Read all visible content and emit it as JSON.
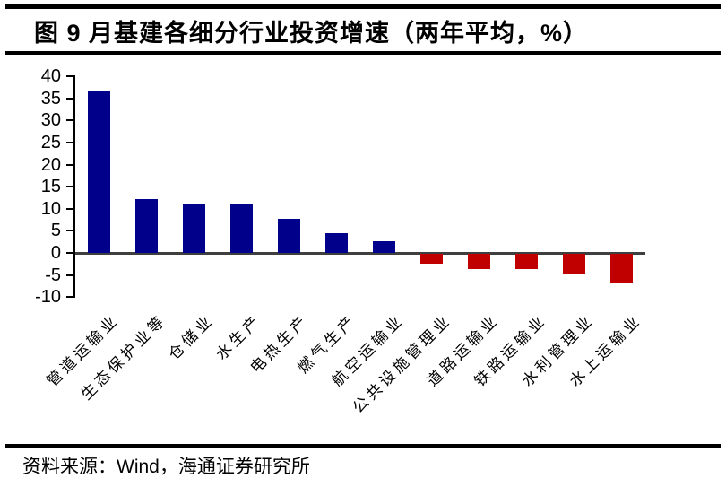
{
  "header": {
    "title": "图 9 月基建各细分行业投资增速（两年平均，%）"
  },
  "footer": {
    "source": "资料来源：Wind，海通证券研究所"
  },
  "chart_data": {
    "type": "bar",
    "title": "9月基建各细分行业投资增速（两年平均，%）",
    "categories": [
      "管道运输业",
      "生态保护业等",
      "仓储业",
      "水生产",
      "电热生产",
      "燃气生产",
      "航空运输业",
      "公共设施管理业",
      "道路运输业",
      "铁路运输业",
      "水利管理业",
      "水上运输业"
    ],
    "values": [
      36.8,
      12.2,
      11.0,
      11.0,
      7.7,
      4.4,
      2.7,
      -2.2,
      -3.4,
      -3.5,
      -4.5,
      -6.7
    ],
    "xlabel": "",
    "ylabel": "",
    "ylim": [
      -10,
      40
    ],
    "yticks": [
      40,
      35,
      30,
      25,
      20,
      15,
      10,
      5,
      0,
      -5,
      -10
    ],
    "grid": false,
    "legend": null,
    "positive_color": "#00008B",
    "negative_color": "#C00000",
    "axis_color": "#000000",
    "zero_line_color": "#3F3F3F"
  }
}
